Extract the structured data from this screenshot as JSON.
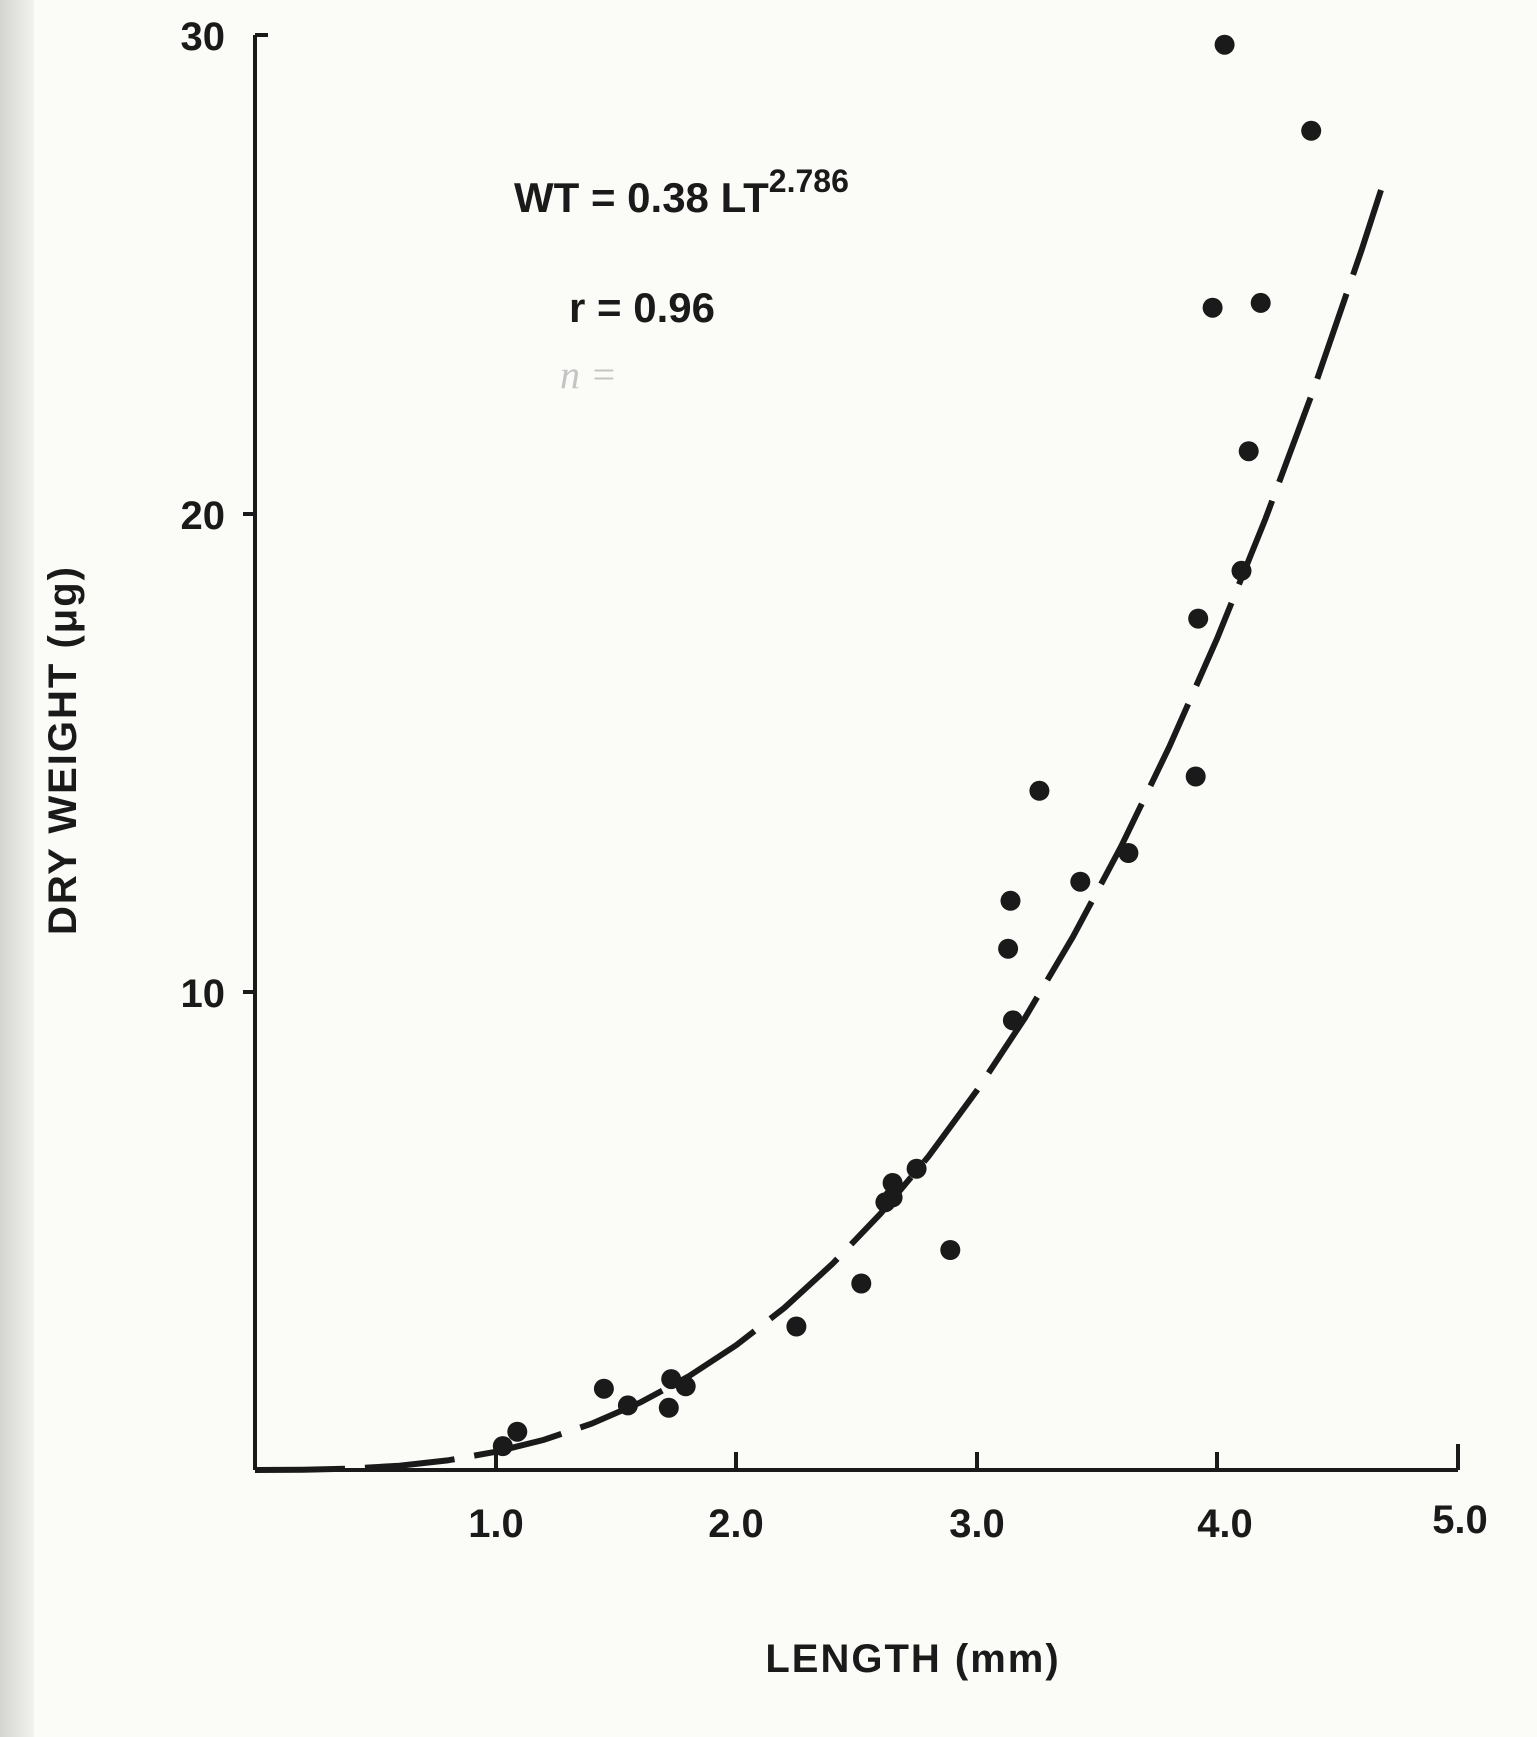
{
  "chart_data": {
    "type": "scatter",
    "title": "",
    "xlabel": "LENGTH (mm)",
    "ylabel": "DRY WEIGHT (μg)",
    "xlim": [
      0,
      5.0
    ],
    "ylim": [
      0,
      30
    ],
    "grid": false,
    "x_ticks": [
      "1.0",
      "2.0",
      "3.0",
      "4.0",
      "5.0"
    ],
    "y_ticks": [
      "10",
      "20",
      "30"
    ],
    "series": [
      {
        "type": "scatter",
        "x": [
          1.03,
          1.09,
          1.45,
          1.55,
          1.72,
          1.73,
          1.79,
          2.25,
          2.52,
          2.62,
          2.65,
          2.65,
          2.75,
          2.89,
          3.13,
          3.14,
          3.15,
          3.26,
          3.43,
          3.63,
          3.91,
          3.92,
          3.98,
          4.03,
          4.1,
          4.13,
          4.18,
          4.39
        ],
        "y": [
          0.5,
          0.8,
          1.7,
          1.35,
          1.3,
          1.9,
          1.75,
          3.0,
          3.9,
          5.6,
          5.7,
          6.0,
          6.3,
          4.6,
          10.9,
          11.9,
          9.4,
          14.2,
          12.3,
          12.9,
          14.5,
          17.8,
          24.3,
          29.8,
          18.8,
          21.3,
          24.4,
          28.0
        ]
      },
      {
        "type": "line",
        "style": "dashed",
        "equation": "WT = 0.38 LT^2.786",
        "x": [
          0,
          0.2,
          0.4,
          0.6,
          0.8,
          1.0,
          1.2,
          1.4,
          1.6,
          1.8,
          2.0,
          2.2,
          2.4,
          2.6,
          2.8,
          3.0,
          3.2,
          3.4,
          3.6,
          3.8,
          4.0,
          4.2,
          4.4,
          4.6,
          4.68
        ],
        "y": [
          0,
          0.004,
          0.03,
          0.09,
          0.2,
          0.38,
          0.63,
          0.97,
          1.41,
          1.95,
          2.61,
          3.39,
          4.31,
          5.36,
          6.56,
          7.93,
          9.45,
          11.15,
          13.04,
          15.12,
          17.4,
          19.89,
          22.59,
          25.52,
          26.76
        ]
      }
    ],
    "annotations": {
      "equation_prefix": "WT = 0.38 LT",
      "equation_exponent": "2.786",
      "correlation": "r = 0.96",
      "handwritten_note": "n ="
    }
  }
}
